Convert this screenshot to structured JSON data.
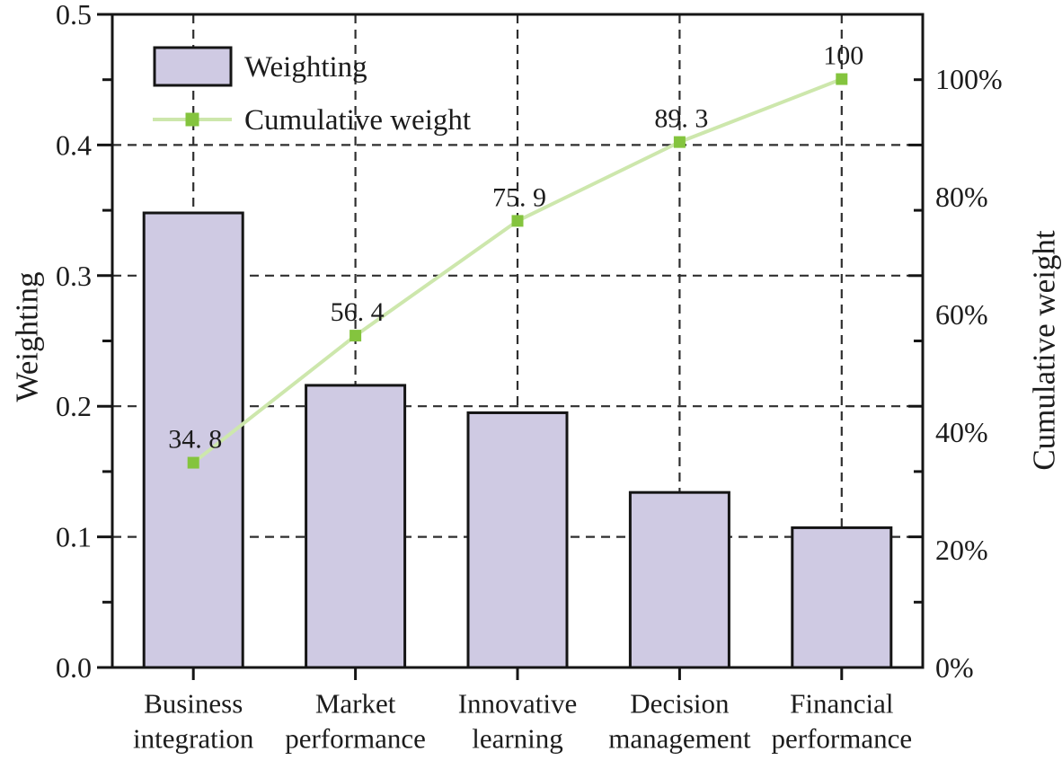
{
  "figure": {
    "background": "#ffffff",
    "text_color": "#1c1c1c",
    "axis_color": "#151515",
    "grid_color": "#2f2f2f"
  },
  "chart_data": {
    "type": "bar",
    "subtype": "pareto: bars with cumulative percentage line",
    "categories": [
      {
        "line1": "Business",
        "line2": "integration"
      },
      {
        "line1": "Market",
        "line2": "performance"
      },
      {
        "line1": "Innovative",
        "line2": "learning"
      },
      {
        "line1": "Decision",
        "line2": "management"
      },
      {
        "line1": "Financial",
        "line2": "performance"
      }
    ],
    "series": [
      {
        "name": "Weighting",
        "type": "bar",
        "values": [
          0.348,
          0.216,
          0.195,
          0.134,
          0.107
        ],
        "fill_color": "#cfcae3",
        "border_color": "#151515"
      },
      {
        "name": "Cumulative weight",
        "type": "line",
        "values": [
          34.8,
          56.4,
          75.9,
          89.3,
          100
        ],
        "point_labels": [
          "34. 8",
          "56. 4",
          "75. 9",
          "89. 3",
          "100"
        ],
        "line_color": "#cde7ac",
        "marker_color": "#84c43e",
        "marker_shape": "square"
      }
    ],
    "left_axis": {
      "label": "Weighting",
      "min": 0.0,
      "max": 0.5,
      "major_step": 0.1,
      "minor_step": 0.05,
      "tick_labels": [
        "0.0",
        "0.1",
        "0.2",
        "0.3",
        "0.4",
        "0.5"
      ]
    },
    "right_axis": {
      "label": "Cumulative weight",
      "min": 0,
      "max": 111,
      "label_values": [
        0,
        20,
        40,
        60,
        80,
        100
      ],
      "tick_labels": [
        "0%",
        "20%",
        "40%",
        "60%",
        "80%",
        "100%"
      ]
    },
    "legend": {
      "position": "top-left",
      "items": [
        "Weighting",
        "Cumulative weight"
      ]
    },
    "grid": {
      "style": "dashed",
      "horizontal_at_left_values": [
        0.1,
        0.2,
        0.3,
        0.4
      ],
      "vertical_at_each_category": true
    }
  }
}
